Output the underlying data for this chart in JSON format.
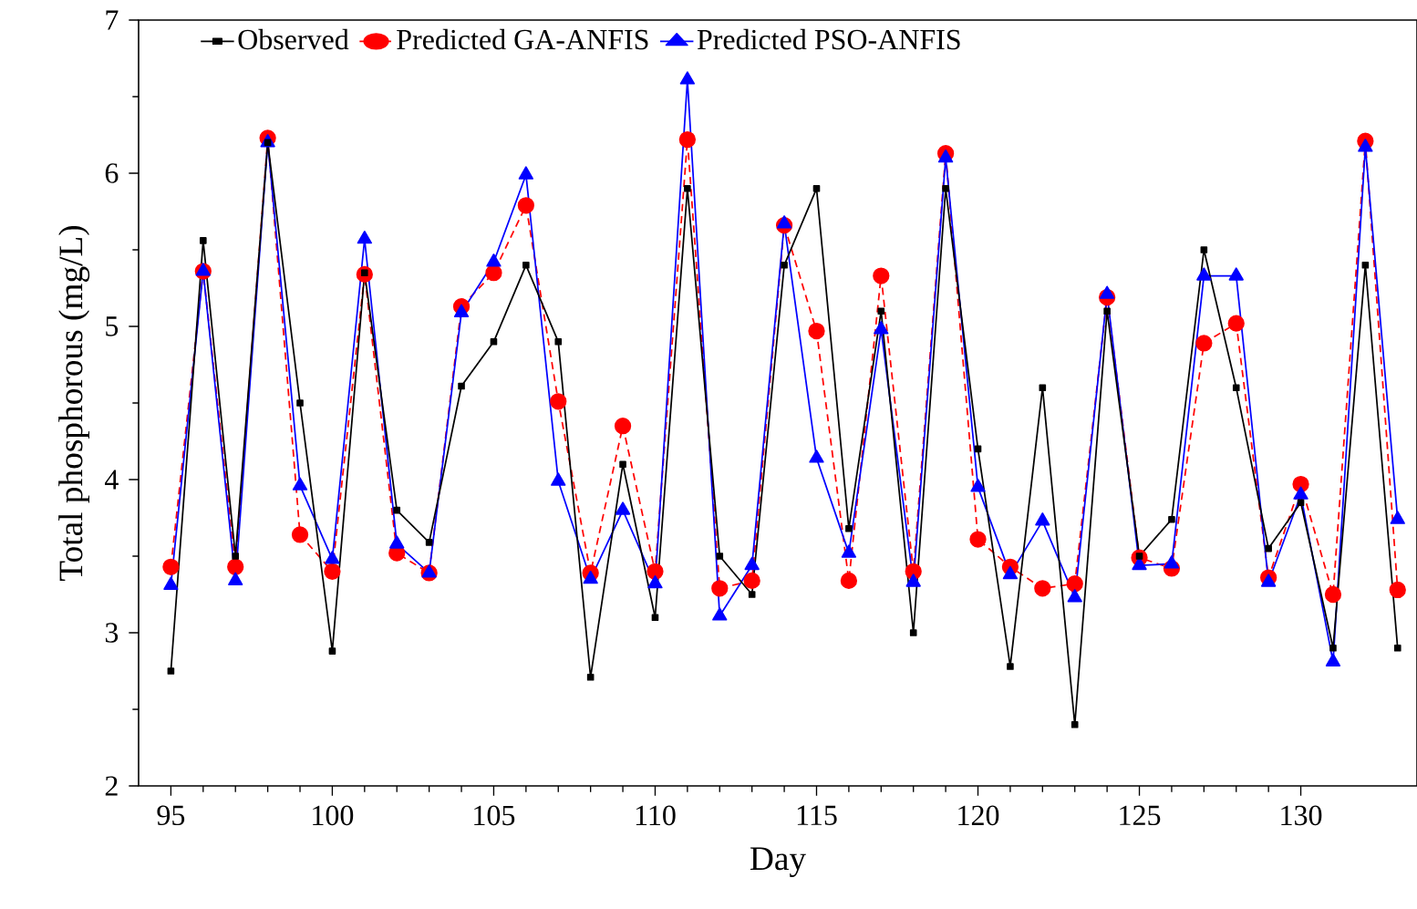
{
  "chart_data": {
    "type": "line",
    "xlabel": "Day",
    "ylabel": "Total phosphorous (mg/L)",
    "x": [
      95,
      96,
      97,
      98,
      99,
      100,
      101,
      102,
      103,
      104,
      105,
      106,
      107,
      108,
      109,
      110,
      111,
      112,
      113,
      114,
      115,
      116,
      117,
      118,
      119,
      120,
      121,
      122,
      123,
      124,
      125,
      126,
      127,
      128,
      129,
      130,
      131,
      132,
      133
    ],
    "series": [
      {
        "name": "Observed",
        "color": "#000000",
        "marker": "square",
        "line_style": "solid",
        "values": [
          2.75,
          5.56,
          3.5,
          6.2,
          4.5,
          2.88,
          5.35,
          3.8,
          3.59,
          4.61,
          4.9,
          5.4,
          4.9,
          2.71,
          4.1,
          3.1,
          5.9,
          3.5,
          3.25,
          5.4,
          5.9,
          3.68,
          5.1,
          3.0,
          5.9,
          4.2,
          2.78,
          4.6,
          2.4,
          5.1,
          3.5,
          3.74,
          5.5,
          4.6,
          3.55,
          3.85,
          2.9,
          5.4,
          2.9
        ]
      },
      {
        "name": "Predicted GA-ANFIS",
        "color": "#ff0000",
        "marker": "circle",
        "line_style": "dashed",
        "values": [
          3.43,
          5.36,
          3.43,
          6.23,
          3.64,
          3.4,
          5.34,
          3.52,
          3.39,
          5.13,
          5.35,
          5.79,
          4.51,
          3.39,
          4.35,
          3.4,
          6.22,
          3.29,
          3.34,
          5.66,
          4.97,
          3.34,
          5.33,
          3.4,
          6.13,
          3.61,
          3.43,
          3.29,
          3.32,
          5.19,
          3.49,
          3.42,
          4.89,
          5.02,
          3.36,
          3.97,
          3.25,
          6.21,
          3.28
        ]
      },
      {
        "name": "Predicted PSO-ANFIS",
        "color": "#0000ff",
        "marker": "triangle",
        "line_style": "solid",
        "values": [
          3.31,
          5.36,
          3.34,
          6.2,
          3.96,
          3.48,
          5.57,
          3.58,
          3.39,
          5.09,
          5.42,
          5.99,
          3.99,
          3.35,
          3.8,
          3.32,
          6.61,
          3.11,
          3.44,
          5.67,
          4.14,
          3.52,
          4.98,
          3.33,
          6.1,
          3.95,
          3.38,
          3.73,
          3.23,
          5.21,
          3.44,
          3.45,
          5.33,
          5.33,
          3.33,
          3.9,
          2.81,
          6.17,
          3.74
        ]
      }
    ],
    "xlim": [
      94,
      133.6
    ],
    "ylim": [
      2,
      7
    ],
    "xticks": [
      95,
      100,
      105,
      110,
      115,
      120,
      125,
      130
    ],
    "yticks": [
      2,
      3,
      4,
      5,
      6,
      7
    ],
    "legend": "top",
    "grid": false
  }
}
